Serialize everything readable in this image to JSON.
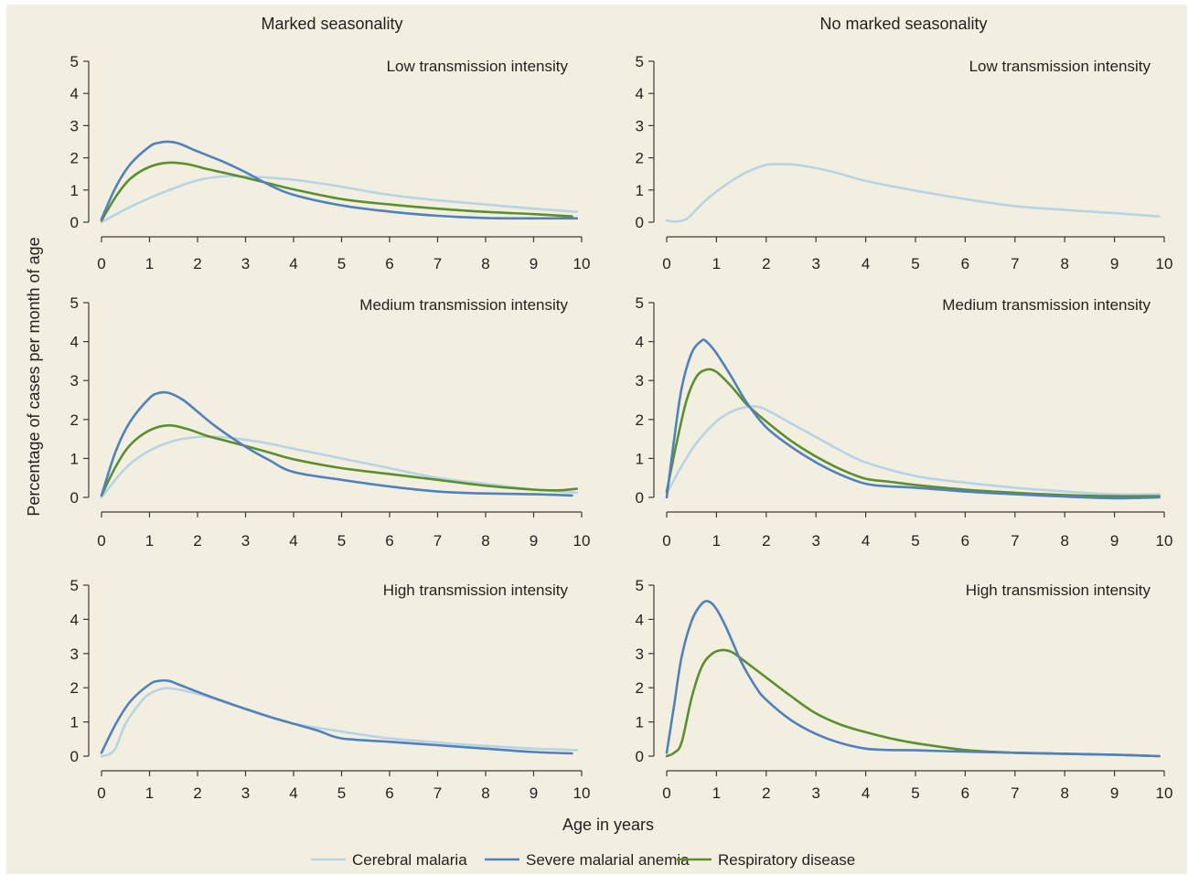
{
  "figure": {
    "column_titles": [
      "Marked seasonality",
      "No marked seasonality"
    ],
    "ylabel": "Percentage of cases per month of age",
    "xlabel": "Age in years",
    "legend": [
      {
        "label": "Cerebral malaria",
        "color": "#b7d4e4"
      },
      {
        "label": "Severe malarial anemia",
        "color": "#4f81bd"
      },
      {
        "label": "Respiratory disease",
        "color": "#5b8f2e"
      }
    ],
    "background": "#f3efe0"
  },
  "chart_data": [
    {
      "type": "line",
      "column": "Marked seasonality",
      "title": "Low transmission intensity",
      "xlim": [
        0,
        10
      ],
      "ylim": [
        0,
        5
      ],
      "xticks": [
        0,
        1,
        2,
        3,
        4,
        5,
        6,
        7,
        8,
        9,
        10
      ],
      "yticks": [
        0,
        1,
        2,
        3,
        4,
        5
      ],
      "series": [
        {
          "name": "Cerebral malaria",
          "x": [
            0,
            0.5,
            1,
            1.5,
            2,
            2.5,
            3,
            3.5,
            4,
            4.5,
            5,
            6,
            7,
            8,
            9,
            9.9
          ],
          "y": [
            0,
            0.4,
            0.75,
            1.05,
            1.3,
            1.42,
            1.42,
            1.38,
            1.32,
            1.22,
            1.1,
            0.85,
            0.68,
            0.55,
            0.42,
            0.32
          ]
        },
        {
          "name": "Severe malarial anemia",
          "x": [
            0,
            0.3,
            0.6,
            1,
            1.2,
            1.4,
            1.6,
            2,
            2.5,
            3,
            3.5,
            4,
            5,
            6,
            7,
            8,
            9,
            9.9
          ],
          "y": [
            0.1,
            1.1,
            1.8,
            2.35,
            2.47,
            2.5,
            2.45,
            2.2,
            1.9,
            1.55,
            1.15,
            0.85,
            0.52,
            0.33,
            0.2,
            0.13,
            0.12,
            0.12
          ]
        },
        {
          "name": "Respiratory disease",
          "x": [
            0,
            0.3,
            0.6,
            1,
            1.4,
            1.8,
            2.2,
            2.6,
            3,
            3.5,
            4,
            5,
            6,
            7,
            8,
            9,
            9.8
          ],
          "y": [
            0.05,
            0.8,
            1.35,
            1.72,
            1.85,
            1.8,
            1.65,
            1.52,
            1.38,
            1.2,
            1.02,
            0.72,
            0.55,
            0.42,
            0.32,
            0.25,
            0.18
          ]
        }
      ]
    },
    {
      "type": "line",
      "column": "No marked seasonality",
      "title": "Low transmission intensity",
      "xlim": [
        0,
        10
      ],
      "ylim": [
        0,
        5
      ],
      "xticks": [
        0,
        1,
        2,
        3,
        4,
        5,
        6,
        7,
        8,
        9,
        10
      ],
      "yticks": [
        0,
        1,
        2,
        3,
        4,
        5
      ],
      "series": [
        {
          "name": "Cerebral malaria",
          "x": [
            0,
            0.2,
            0.4,
            0.6,
            0.8,
            1,
            1.3,
            1.6,
            2,
            2.3,
            2.6,
            3,
            3.5,
            4,
            5,
            6,
            7,
            8,
            9,
            9.9
          ],
          "y": [
            0.05,
            0.02,
            0.1,
            0.4,
            0.7,
            0.95,
            1.28,
            1.55,
            1.78,
            1.8,
            1.78,
            1.68,
            1.5,
            1.28,
            0.98,
            0.72,
            0.5,
            0.38,
            0.28,
            0.18
          ]
        }
      ]
    },
    {
      "type": "line",
      "column": "Marked seasonality",
      "title": "Medium transmission intensity",
      "xlim": [
        0,
        10
      ],
      "ylim": [
        0,
        5
      ],
      "xticks": [
        0,
        1,
        2,
        3,
        4,
        5,
        6,
        7,
        8,
        9,
        10
      ],
      "yticks": [
        0,
        1,
        2,
        3,
        4,
        5
      ],
      "series": [
        {
          "name": "Cerebral malaria",
          "x": [
            0,
            0.5,
            1,
            1.5,
            2,
            2.5,
            3,
            3.5,
            4,
            5,
            6,
            7,
            8,
            9,
            9.9
          ],
          "y": [
            0,
            0.75,
            1.2,
            1.45,
            1.55,
            1.55,
            1.48,
            1.38,
            1.25,
            1.0,
            0.75,
            0.5,
            0.35,
            0.2,
            0.12
          ]
        },
        {
          "name": "Severe malarial anemia",
          "x": [
            0,
            0.3,
            0.6,
            1,
            1.2,
            1.4,
            1.7,
            2,
            2.4,
            3,
            3.5,
            4,
            5,
            6,
            7,
            7.5,
            8,
            9,
            9.8
          ],
          "y": [
            0.05,
            1.2,
            1.95,
            2.55,
            2.68,
            2.68,
            2.5,
            2.2,
            1.8,
            1.3,
            0.95,
            0.65,
            0.45,
            0.28,
            0.15,
            0.12,
            0.1,
            0.08,
            0.05
          ]
        },
        {
          "name": "Respiratory disease",
          "x": [
            0,
            0.3,
            0.6,
            1,
            1.4,
            1.8,
            2.2,
            2.6,
            3,
            3.5,
            4,
            5,
            6,
            7,
            8,
            9,
            9.5,
            9.9
          ],
          "y": [
            0.05,
            0.8,
            1.35,
            1.72,
            1.85,
            1.75,
            1.58,
            1.45,
            1.32,
            1.15,
            0.98,
            0.75,
            0.6,
            0.45,
            0.3,
            0.2,
            0.18,
            0.22
          ]
        }
      ]
    },
    {
      "type": "line",
      "column": "No marked seasonality",
      "title": "Medium transmission intensity",
      "xlim": [
        0,
        10
      ],
      "ylim": [
        0,
        5
      ],
      "xticks": [
        0,
        1,
        2,
        3,
        4,
        5,
        6,
        7,
        8,
        9,
        10
      ],
      "yticks": [
        0,
        1,
        2,
        3,
        4,
        5
      ],
      "series": [
        {
          "name": "Cerebral malaria",
          "x": [
            0,
            0.3,
            0.6,
            1,
            1.3,
            1.6,
            1.8,
            2,
            2.5,
            3,
            3.5,
            4,
            5,
            6,
            7,
            8,
            9,
            9.9
          ],
          "y": [
            0.1,
            0.8,
            1.4,
            1.95,
            2.2,
            2.32,
            2.33,
            2.25,
            1.9,
            1.55,
            1.2,
            0.9,
            0.55,
            0.38,
            0.25,
            0.15,
            0.08,
            0.08
          ]
        },
        {
          "name": "Severe malarial anemia",
          "x": [
            0,
            0.15,
            0.3,
            0.5,
            0.7,
            0.8,
            1,
            1.3,
            1.6,
            2,
            2.5,
            3,
            3.5,
            4,
            4.5,
            5,
            6,
            7,
            8,
            9,
            9.9
          ],
          "y": [
            0,
            1.5,
            2.8,
            3.7,
            4.02,
            4.0,
            3.7,
            3.1,
            2.45,
            1.8,
            1.3,
            0.9,
            0.58,
            0.35,
            0.28,
            0.25,
            0.15,
            0.08,
            0.02,
            -0.02,
            0
          ]
        },
        {
          "name": "Respiratory disease",
          "x": [
            0,
            0.2,
            0.4,
            0.6,
            0.8,
            1,
            1.3,
            1.6,
            2,
            2.5,
            3,
            3.5,
            4,
            4.5,
            5,
            6,
            7,
            8,
            9,
            9.9
          ],
          "y": [
            0.15,
            1.4,
            2.5,
            3.1,
            3.28,
            3.22,
            2.85,
            2.4,
            1.95,
            1.45,
            1.05,
            0.72,
            0.48,
            0.4,
            0.32,
            0.2,
            0.12,
            0.06,
            0.03,
            0.03
          ]
        }
      ]
    },
    {
      "type": "line",
      "column": "Marked seasonality",
      "title": "High transmission intensity",
      "xlim": [
        0,
        10
      ],
      "ylim": [
        0,
        5
      ],
      "xticks": [
        0,
        1,
        2,
        3,
        4,
        5,
        6,
        7,
        8,
        9,
        10
      ],
      "yticks": [
        0,
        1,
        2,
        3,
        4,
        5
      ],
      "series": [
        {
          "name": "Cerebral malaria",
          "x": [
            0,
            0.15,
            0.3,
            0.5,
            0.8,
            1,
            1.3,
            1.6,
            2,
            2.5,
            3,
            3.5,
            4,
            5,
            6,
            7,
            8,
            9,
            9.9
          ],
          "y": [
            0,
            0.05,
            0.25,
            0.95,
            1.55,
            1.82,
            1.98,
            1.95,
            1.82,
            1.62,
            1.38,
            1.15,
            0.95,
            0.72,
            0.52,
            0.4,
            0.3,
            0.22,
            0.18
          ]
        },
        {
          "name": "Severe malarial anemia",
          "x": [
            0,
            0.3,
            0.6,
            1,
            1.2,
            1.4,
            1.6,
            2,
            2.5,
            3,
            3.5,
            4,
            4.5,
            5,
            6,
            7,
            8,
            9,
            9.8
          ],
          "y": [
            0.1,
            0.95,
            1.6,
            2.1,
            2.2,
            2.2,
            2.1,
            1.88,
            1.62,
            1.38,
            1.15,
            0.95,
            0.75,
            0.52,
            0.42,
            0.32,
            0.22,
            0.12,
            0.08
          ]
        }
      ]
    },
    {
      "type": "line",
      "column": "No marked seasonality",
      "title": "High transmission intensity",
      "xlim": [
        0,
        10
      ],
      "ylim": [
        0,
        5
      ],
      "xticks": [
        0,
        1,
        2,
        3,
        4,
        5,
        6,
        7,
        8,
        9,
        10
      ],
      "yticks": [
        0,
        1,
        2,
        3,
        4,
        5
      ],
      "series": [
        {
          "name": "Severe malarial anemia",
          "x": [
            0,
            0.15,
            0.3,
            0.5,
            0.7,
            0.85,
            1,
            1.2,
            1.5,
            1.8,
            2,
            2.5,
            3,
            3.5,
            4,
            4.5,
            5,
            6,
            7,
            8,
            9,
            9.9
          ],
          "y": [
            0.1,
            1.5,
            2.9,
            3.95,
            4.45,
            4.52,
            4.3,
            3.75,
            2.75,
            2.0,
            1.65,
            1.05,
            0.65,
            0.38,
            0.22,
            0.18,
            0.17,
            0.13,
            0.1,
            0.07,
            0.04,
            0
          ]
        },
        {
          "name": "Respiratory disease",
          "x": [
            0,
            0.15,
            0.3,
            0.5,
            0.7,
            0.9,
            1.1,
            1.3,
            1.5,
            2,
            2.5,
            3,
            3.5,
            4,
            4.5,
            5,
            6,
            7,
            8,
            9,
            9.9
          ],
          "y": [
            0,
            0.1,
            0.4,
            1.7,
            2.6,
            2.98,
            3.1,
            3.05,
            2.85,
            2.3,
            1.75,
            1.25,
            0.92,
            0.7,
            0.52,
            0.38,
            0.18,
            0.1,
            0.07,
            0.04,
            0
          ]
        }
      ]
    }
  ]
}
